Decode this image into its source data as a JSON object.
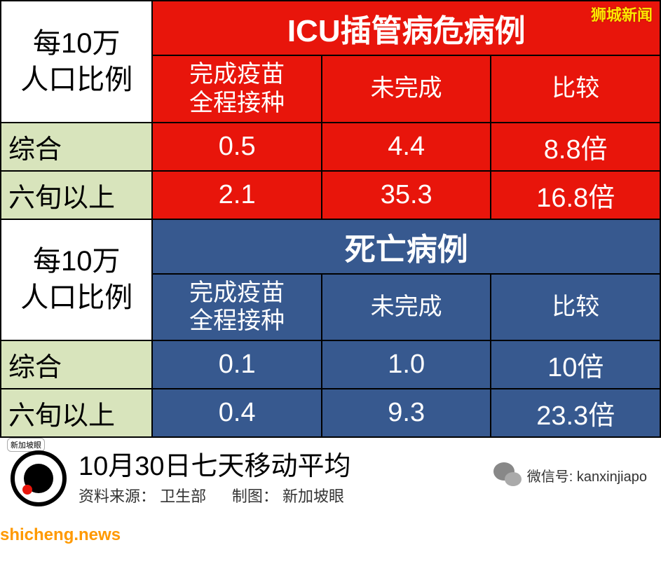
{
  "watermarks": {
    "top_right": "狮城新闻",
    "bottom_left": "shicheng.news"
  },
  "colors": {
    "red": "#e8150b",
    "blue": "#37598f",
    "green": "#d8e4bc",
    "border": "#000000"
  },
  "table": {
    "section1": {
      "row_label_line1": "每10万",
      "row_label_line2": "人口比例",
      "header": "ICU插管病危病例",
      "col1_line1": "完成疫苗",
      "col1_line2": "全程接种",
      "col2": "未完成",
      "col3": "比较",
      "row1": {
        "label": "综合",
        "c1": "0.5",
        "c2": "4.4",
        "c3": "8.8倍"
      },
      "row2": {
        "label": "六旬以上",
        "c1": "2.1",
        "c2": "35.3",
        "c3": "16.8倍"
      }
    },
    "section2": {
      "row_label_line1": "每10万",
      "row_label_line2": "人口比例",
      "header": "死亡病例",
      "col1_line1": "完成疫苗",
      "col1_line2": "全程接种",
      "col2": "未完成",
      "col3": "比较",
      "row1": {
        "label": "综合",
        "c1": "0.1",
        "c2": "1.0",
        "c3": "10倍"
      },
      "row2": {
        "label": "六旬以上",
        "c1": "0.4",
        "c2": "9.3",
        "c3": "23.3倍"
      }
    }
  },
  "footer": {
    "logo_text": "新加坡眼",
    "title": "10月30日七天移动平均",
    "source_label": "资料来源：",
    "source_value": "卫生部",
    "creator_label": "制图：",
    "creator_value": "新加坡眼",
    "wechat_label": "微信号:",
    "wechat_id": "kanxinjiapo"
  }
}
